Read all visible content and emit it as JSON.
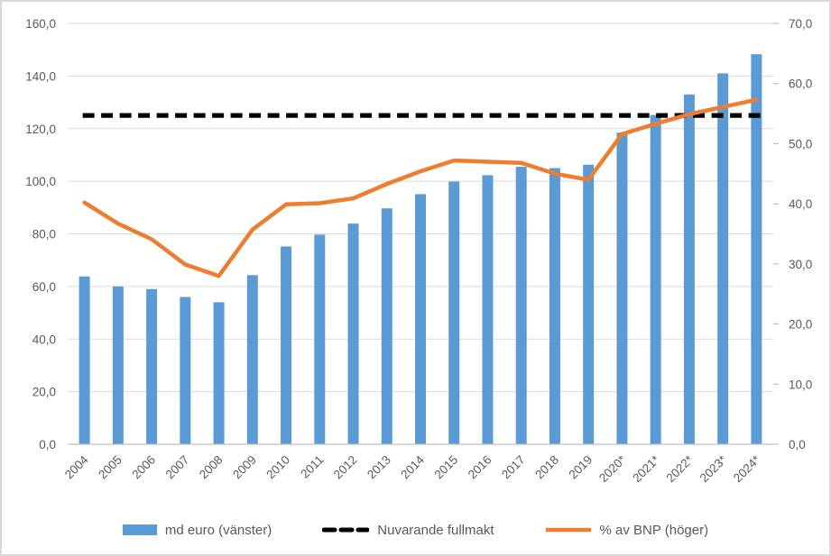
{
  "chart_data": {
    "type": "combo",
    "title": "",
    "grid": true,
    "legend_position": "bottom",
    "categories": [
      "2004",
      "2005",
      "2006",
      "2007",
      "2008",
      "2009",
      "2010",
      "2011",
      "2012",
      "2013",
      "2014",
      "2015",
      "2016",
      "2017",
      "2018",
      "2019",
      "2020*",
      "2021*",
      "2022*",
      "2023*",
      "2024*"
    ],
    "series": [
      {
        "name": "md euro (vänster)",
        "type": "bar",
        "axis": "left",
        "color": "#5B9BD5",
        "values": [
          63.8,
          60.0,
          59.0,
          56.0,
          54.0,
          64.3,
          75.2,
          79.7,
          83.9,
          89.7,
          95.1,
          99.9,
          102.3,
          105.5,
          105.0,
          106.3,
          118.5,
          125.2,
          133.0,
          141.0,
          148.3
        ]
      },
      {
        "name": "Nuvarande fullmakt",
        "type": "constant-dashed-line",
        "axis": "left",
        "color": "#000000",
        "value": 125.0
      },
      {
        "name": "% av BNP (höger)",
        "type": "line",
        "axis": "right",
        "color": "#ED7D31",
        "values": [
          40.2,
          36.7,
          34.1,
          29.9,
          28.0,
          35.7,
          39.9,
          40.1,
          40.9,
          43.3,
          45.4,
          47.2,
          47.0,
          46.8,
          45.0,
          44.0,
          51.6,
          53.3,
          54.9,
          56.1,
          57.3
        ]
      }
    ],
    "left_axis": {
      "min": 0,
      "max": 160,
      "step": 20,
      "ticks": [
        {
          "value": 0,
          "label": "0,0"
        },
        {
          "value": 20,
          "label": "20,0"
        },
        {
          "value": 40,
          "label": "40,0"
        },
        {
          "value": 60,
          "label": "60,0"
        },
        {
          "value": 80,
          "label": "80,0"
        },
        {
          "value": 100,
          "label": "100,0"
        },
        {
          "value": 120,
          "label": "120,0"
        },
        {
          "value": 140,
          "label": "140,0"
        },
        {
          "value": 160,
          "label": "160,0"
        }
      ]
    },
    "right_axis": {
      "min": 0,
      "max": 70,
      "step": 10,
      "ticks": [
        {
          "value": 0,
          "label": "0,0"
        },
        {
          "value": 10,
          "label": "10,0"
        },
        {
          "value": 20,
          "label": "20,0"
        },
        {
          "value": 30,
          "label": "30,0"
        },
        {
          "value": 40,
          "label": "40,0"
        },
        {
          "value": 50,
          "label": "50,0"
        },
        {
          "value": 60,
          "label": "60,0"
        },
        {
          "value": 70,
          "label": "70,0"
        }
      ]
    }
  },
  "colors": {
    "gridline": "#D9D9D9",
    "axis_line": "#BFBFBF",
    "axis_text": "#595959",
    "legend_text": "#595959",
    "background": "#FFFFFF",
    "frame_border": "#D9D9D9"
  }
}
